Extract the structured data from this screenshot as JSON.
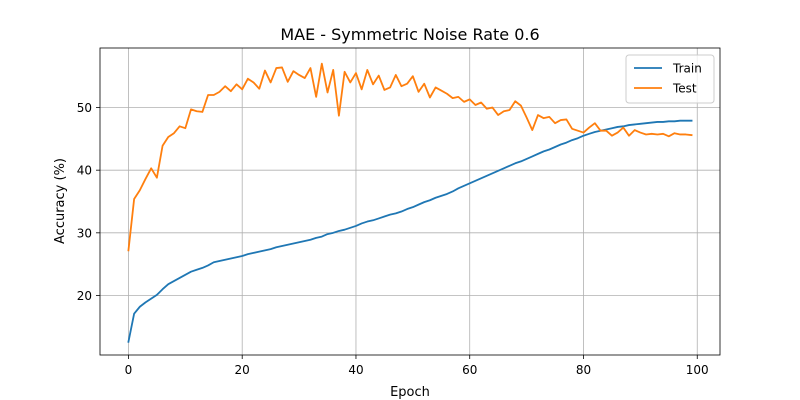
{
  "chart_data": {
    "type": "line",
    "title": "MAE - Symmetric Noise Rate 0.6",
    "xlabel": "Epoch",
    "ylabel": "Accuracy (%)",
    "xlim": [
      -5,
      104
    ],
    "ylim": [
      10.5,
      59.5
    ],
    "xticks": [
      0,
      20,
      40,
      60,
      80,
      100
    ],
    "yticks": [
      20,
      30,
      40,
      50
    ],
    "grid": true,
    "legend_position": "top-right",
    "series": [
      {
        "name": "Train",
        "color": "#1f77b4",
        "values": [
          12.6,
          17.1,
          18.2,
          18.9,
          19.5,
          20.1,
          21.0,
          21.8,
          22.3,
          22.8,
          23.3,
          23.8,
          24.1,
          24.4,
          24.8,
          25.3,
          25.5,
          25.7,
          25.9,
          26.1,
          26.3,
          26.6,
          26.8,
          27.0,
          27.2,
          27.4,
          27.7,
          27.9,
          28.1,
          28.3,
          28.5,
          28.7,
          28.9,
          29.2,
          29.4,
          29.8,
          30.0,
          30.3,
          30.5,
          30.8,
          31.1,
          31.5,
          31.8,
          32.0,
          32.3,
          32.6,
          32.9,
          33.1,
          33.4,
          33.8,
          34.1,
          34.5,
          34.9,
          35.2,
          35.6,
          35.9,
          36.2,
          36.6,
          37.1,
          37.5,
          37.9,
          38.3,
          38.7,
          39.1,
          39.5,
          39.9,
          40.3,
          40.7,
          41.1,
          41.4,
          41.8,
          42.2,
          42.6,
          43.0,
          43.3,
          43.7,
          44.1,
          44.4,
          44.8,
          45.1,
          45.5,
          45.8,
          46.1,
          46.3,
          46.5,
          46.7,
          46.9,
          47.0,
          47.2,
          47.3,
          47.4,
          47.5,
          47.6,
          47.7,
          47.7,
          47.8,
          47.8,
          47.9,
          47.9,
          47.9
        ]
      },
      {
        "name": "Test",
        "color": "#ff7f0e",
        "values": [
          27.2,
          35.4,
          36.8,
          38.6,
          40.3,
          38.8,
          43.9,
          45.3,
          45.9,
          47.0,
          46.7,
          49.7,
          49.4,
          49.3,
          52.0,
          52.0,
          52.5,
          53.4,
          52.6,
          53.7,
          52.9,
          54.6,
          54.0,
          53.0,
          55.9,
          54.0,
          56.3,
          56.4,
          54.1,
          55.8,
          55.2,
          54.7,
          56.3,
          51.7,
          57.0,
          52.4,
          56.0,
          48.7,
          55.7,
          54.0,
          55.5,
          52.9,
          56.0,
          53.7,
          55.1,
          52.8,
          53.2,
          55.2,
          53.4,
          53.8,
          55.0,
          52.5,
          53.8,
          51.6,
          53.2,
          52.7,
          52.2,
          51.5,
          51.7,
          50.9,
          51.3,
          50.4,
          50.8,
          49.8,
          50.0,
          48.8,
          49.4,
          49.6,
          51.0,
          50.3,
          48.4,
          46.4,
          48.8,
          48.3,
          48.5,
          47.5,
          48.0,
          48.1,
          46.6,
          46.3,
          46.0,
          46.8,
          47.5,
          46.3,
          46.3,
          45.5,
          46.0,
          46.8,
          45.5,
          46.4,
          46.0,
          45.7,
          45.8,
          45.7,
          45.8,
          45.4,
          45.9,
          45.7,
          45.7,
          45.6
        ]
      }
    ]
  }
}
